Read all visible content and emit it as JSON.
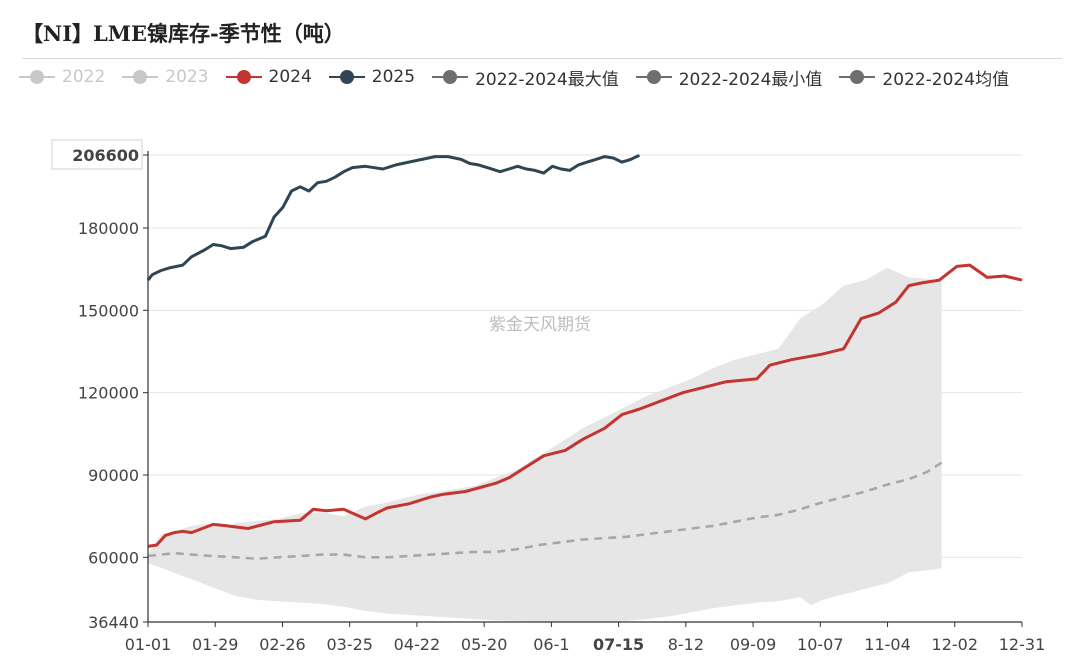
{
  "title": "【NI】LME镍库存-季节性（吨）",
  "watermark": "紫金天风期货",
  "legend": [
    {
      "label": "2022",
      "color": "#c8c8c8",
      "dashed": false,
      "inactive": true
    },
    {
      "label": "2023",
      "color": "#c8c8c8",
      "dashed": false,
      "inactive": true
    },
    {
      "label": "2024",
      "color": "#c23531",
      "dashed": false,
      "inactive": false
    },
    {
      "label": "2025",
      "color": "#2f4554",
      "dashed": false,
      "inactive": false
    },
    {
      "label": "2022-2024最大值",
      "color": "#6e6e6e",
      "dashed": false,
      "inactive": false
    },
    {
      "label": "2022-2024最小值",
      "color": "#6e6e6e",
      "dashed": false,
      "inactive": false
    },
    {
      "label": "2022-2024均值",
      "color": "#6e6e6e",
      "dashed": false,
      "inactive": false
    }
  ],
  "chart_data": {
    "type": "line",
    "x_range": [
      "01-01",
      "12-31"
    ],
    "x_ticks": [
      "01-01",
      "01-29",
      "02-26",
      "03-25",
      "04-22",
      "05-20",
      "06-1",
      "07-15",
      "8-12",
      "09-09",
      "10-07",
      "11-04",
      "12-02",
      "12-31"
    ],
    "x_highlight": "07-15",
    "ylim": [
      36440,
      206600
    ],
    "y_ticks": [
      36440,
      60000,
      90000,
      120000,
      150000,
      180000,
      206600
    ],
    "y_highlight": 206600,
    "grid": true,
    "band": {
      "name": "2022-2024 range",
      "color": "#e6e6e6",
      "upper": [
        [
          0,
          61000
        ],
        [
          4,
          66000
        ],
        [
          6,
          68500
        ],
        [
          11,
          69000
        ],
        [
          20,
          71500
        ],
        [
          30,
          72500
        ],
        [
          36,
          70500
        ],
        [
          40,
          72500
        ],
        [
          60,
          74000
        ],
        [
          70,
          76000
        ],
        [
          80,
          76500
        ],
        [
          90,
          75000
        ],
        [
          100,
          78500
        ],
        [
          110,
          80000
        ],
        [
          125,
          83000
        ],
        [
          135,
          84000
        ],
        [
          150,
          86000
        ],
        [
          160,
          89000
        ],
        [
          170,
          92000
        ],
        [
          180,
          97000
        ],
        [
          190,
          102000
        ],
        [
          200,
          107000
        ],
        [
          210,
          111000
        ],
        [
          220,
          115000
        ],
        [
          230,
          119000
        ],
        [
          240,
          122000
        ],
        [
          250,
          125000
        ],
        [
          260,
          129000
        ],
        [
          270,
          132000
        ],
        [
          280,
          134000
        ],
        [
          290,
          136000
        ],
        [
          300,
          147000
        ],
        [
          310,
          152000
        ],
        [
          320,
          159000
        ],
        [
          330,
          161000
        ],
        [
          340,
          165500
        ],
        [
          350,
          162000
        ],
        [
          365,
          161000
        ]
      ],
      "lower": [
        [
          0,
          58000
        ],
        [
          10,
          55000
        ],
        [
          20,
          52000
        ],
        [
          30,
          49000
        ],
        [
          40,
          46000
        ],
        [
          50,
          44500
        ],
        [
          60,
          44000
        ],
        [
          70,
          43500
        ],
        [
          80,
          43000
        ],
        [
          90,
          42000
        ],
        [
          100,
          40500
        ],
        [
          110,
          39500
        ],
        [
          120,
          39000
        ],
        [
          130,
          38500
        ],
        [
          140,
          38000
        ],
        [
          150,
          37500
        ],
        [
          160,
          37000
        ],
        [
          170,
          36800
        ],
        [
          180,
          36600
        ],
        [
          190,
          36500
        ],
        [
          200,
          36500
        ],
        [
          210,
          36500
        ],
        [
          220,
          36800
        ],
        [
          230,
          37500
        ],
        [
          240,
          38500
        ],
        [
          250,
          40000
        ],
        [
          260,
          41500
        ],
        [
          270,
          42500
        ],
        [
          280,
          43500
        ],
        [
          290,
          44000
        ],
        [
          300,
          45500
        ],
        [
          305,
          42500
        ],
        [
          310,
          44500
        ],
        [
          320,
          46500
        ],
        [
          330,
          48500
        ],
        [
          340,
          50500
        ],
        [
          350,
          54500
        ],
        [
          360,
          55500
        ],
        [
          365,
          56000
        ]
      ]
    },
    "series": [
      {
        "name": "2024",
        "color": "#c23531",
        "dashed": false,
        "points": [
          [
            0,
            64000
          ],
          [
            4,
            64500
          ],
          [
            8,
            68000
          ],
          [
            12,
            69000
          ],
          [
            16,
            69500
          ],
          [
            20,
            69000
          ],
          [
            30,
            72000
          ],
          [
            36,
            71500
          ],
          [
            46,
            70500
          ],
          [
            58,
            73000
          ],
          [
            70,
            73500
          ],
          [
            76,
            77500
          ],
          [
            82,
            77000
          ],
          [
            90,
            77500
          ],
          [
            100,
            74000
          ],
          [
            106,
            76500
          ],
          [
            110,
            78000
          ],
          [
            120,
            79500
          ],
          [
            130,
            82000
          ],
          [
            136,
            83000
          ],
          [
            146,
            84000
          ],
          [
            160,
            87000
          ],
          [
            166,
            89000
          ],
          [
            172,
            92000
          ],
          [
            182,
            97000
          ],
          [
            192,
            99000
          ],
          [
            200,
            103000
          ],
          [
            210,
            107000
          ],
          [
            218,
            112000
          ],
          [
            226,
            114000
          ],
          [
            236,
            117000
          ],
          [
            246,
            120000
          ],
          [
            256,
            122000
          ],
          [
            266,
            124000
          ],
          [
            280,
            125000
          ],
          [
            286,
            130000
          ],
          [
            296,
            132000
          ],
          [
            310,
            134000
          ],
          [
            320,
            136000
          ],
          [
            328,
            147000
          ],
          [
            336,
            149000
          ],
          [
            344,
            153000
          ],
          [
            350,
            159000
          ],
          [
            356,
            160000
          ],
          [
            364,
            161000
          ],
          [
            372,
            166000
          ],
          [
            378,
            166500
          ],
          [
            386,
            162000
          ],
          [
            394,
            162500
          ],
          [
            402,
            161000
          ]
        ]
      },
      {
        "name": "2025",
        "color": "#2f4554",
        "dashed": false,
        "points": [
          [
            0,
            161000
          ],
          [
            2,
            163000
          ],
          [
            6,
            164500
          ],
          [
            10,
            165500
          ],
          [
            16,
            166500
          ],
          [
            20,
            169500
          ],
          [
            26,
            172000
          ],
          [
            30,
            174000
          ],
          [
            34,
            173500
          ],
          [
            38,
            172500
          ],
          [
            44,
            173000
          ],
          [
            48,
            175000
          ],
          [
            54,
            177000
          ],
          [
            58,
            184000
          ],
          [
            62,
            187500
          ],
          [
            66,
            193500
          ],
          [
            70,
            195000
          ],
          [
            74,
            193500
          ],
          [
            78,
            196500
          ],
          [
            82,
            197000
          ],
          [
            86,
            198500
          ],
          [
            90,
            200500
          ],
          [
            94,
            202000
          ],
          [
            100,
            202500
          ],
          [
            108,
            201500
          ],
          [
            114,
            203000
          ],
          [
            120,
            204000
          ],
          [
            126,
            205000
          ],
          [
            132,
            206000
          ],
          [
            138,
            206000
          ],
          [
            144,
            205000
          ],
          [
            148,
            203500
          ],
          [
            152,
            203000
          ],
          [
            156,
            202000
          ],
          [
            162,
            200500
          ],
          [
            166,
            201500
          ],
          [
            170,
            202500
          ],
          [
            174,
            201500
          ],
          [
            178,
            201000
          ],
          [
            182,
            200000
          ],
          [
            186,
            202500
          ],
          [
            190,
            201500
          ],
          [
            194,
            201000
          ],
          [
            198,
            203000
          ],
          [
            202,
            204000
          ],
          [
            206,
            205000
          ],
          [
            210,
            206000
          ],
          [
            214,
            205500
          ],
          [
            218,
            204000
          ],
          [
            222,
            205000
          ],
          [
            226,
            206500
          ]
        ]
      },
      {
        "name": "2022-2024均值",
        "color": "#a8a8a8",
        "dashed": true,
        "points": [
          [
            0,
            60500
          ],
          [
            6,
            61000
          ],
          [
            12,
            61500
          ],
          [
            20,
            61000
          ],
          [
            30,
            60500
          ],
          [
            40,
            60000
          ],
          [
            50,
            59500
          ],
          [
            60,
            60000
          ],
          [
            70,
            60500
          ],
          [
            80,
            61000
          ],
          [
            90,
            61000
          ],
          [
            100,
            60000
          ],
          [
            110,
            60000
          ],
          [
            120,
            60500
          ],
          [
            130,
            61000
          ],
          [
            140,
            61500
          ],
          [
            150,
            62000
          ],
          [
            160,
            62000
          ],
          [
            170,
            63000
          ],
          [
            180,
            64500
          ],
          [
            190,
            65500
          ],
          [
            200,
            66500
          ],
          [
            210,
            67000
          ],
          [
            220,
            67500
          ],
          [
            230,
            68500
          ],
          [
            240,
            69500
          ],
          [
            250,
            70500
          ],
          [
            260,
            71500
          ],
          [
            270,
            73000
          ],
          [
            280,
            74500
          ],
          [
            290,
            75500
          ],
          [
            300,
            77500
          ],
          [
            310,
            80000
          ],
          [
            320,
            82000
          ],
          [
            330,
            84000
          ],
          [
            340,
            86500
          ],
          [
            350,
            88500
          ],
          [
            358,
            91000
          ],
          [
            365,
            94500
          ]
        ]
      }
    ]
  }
}
